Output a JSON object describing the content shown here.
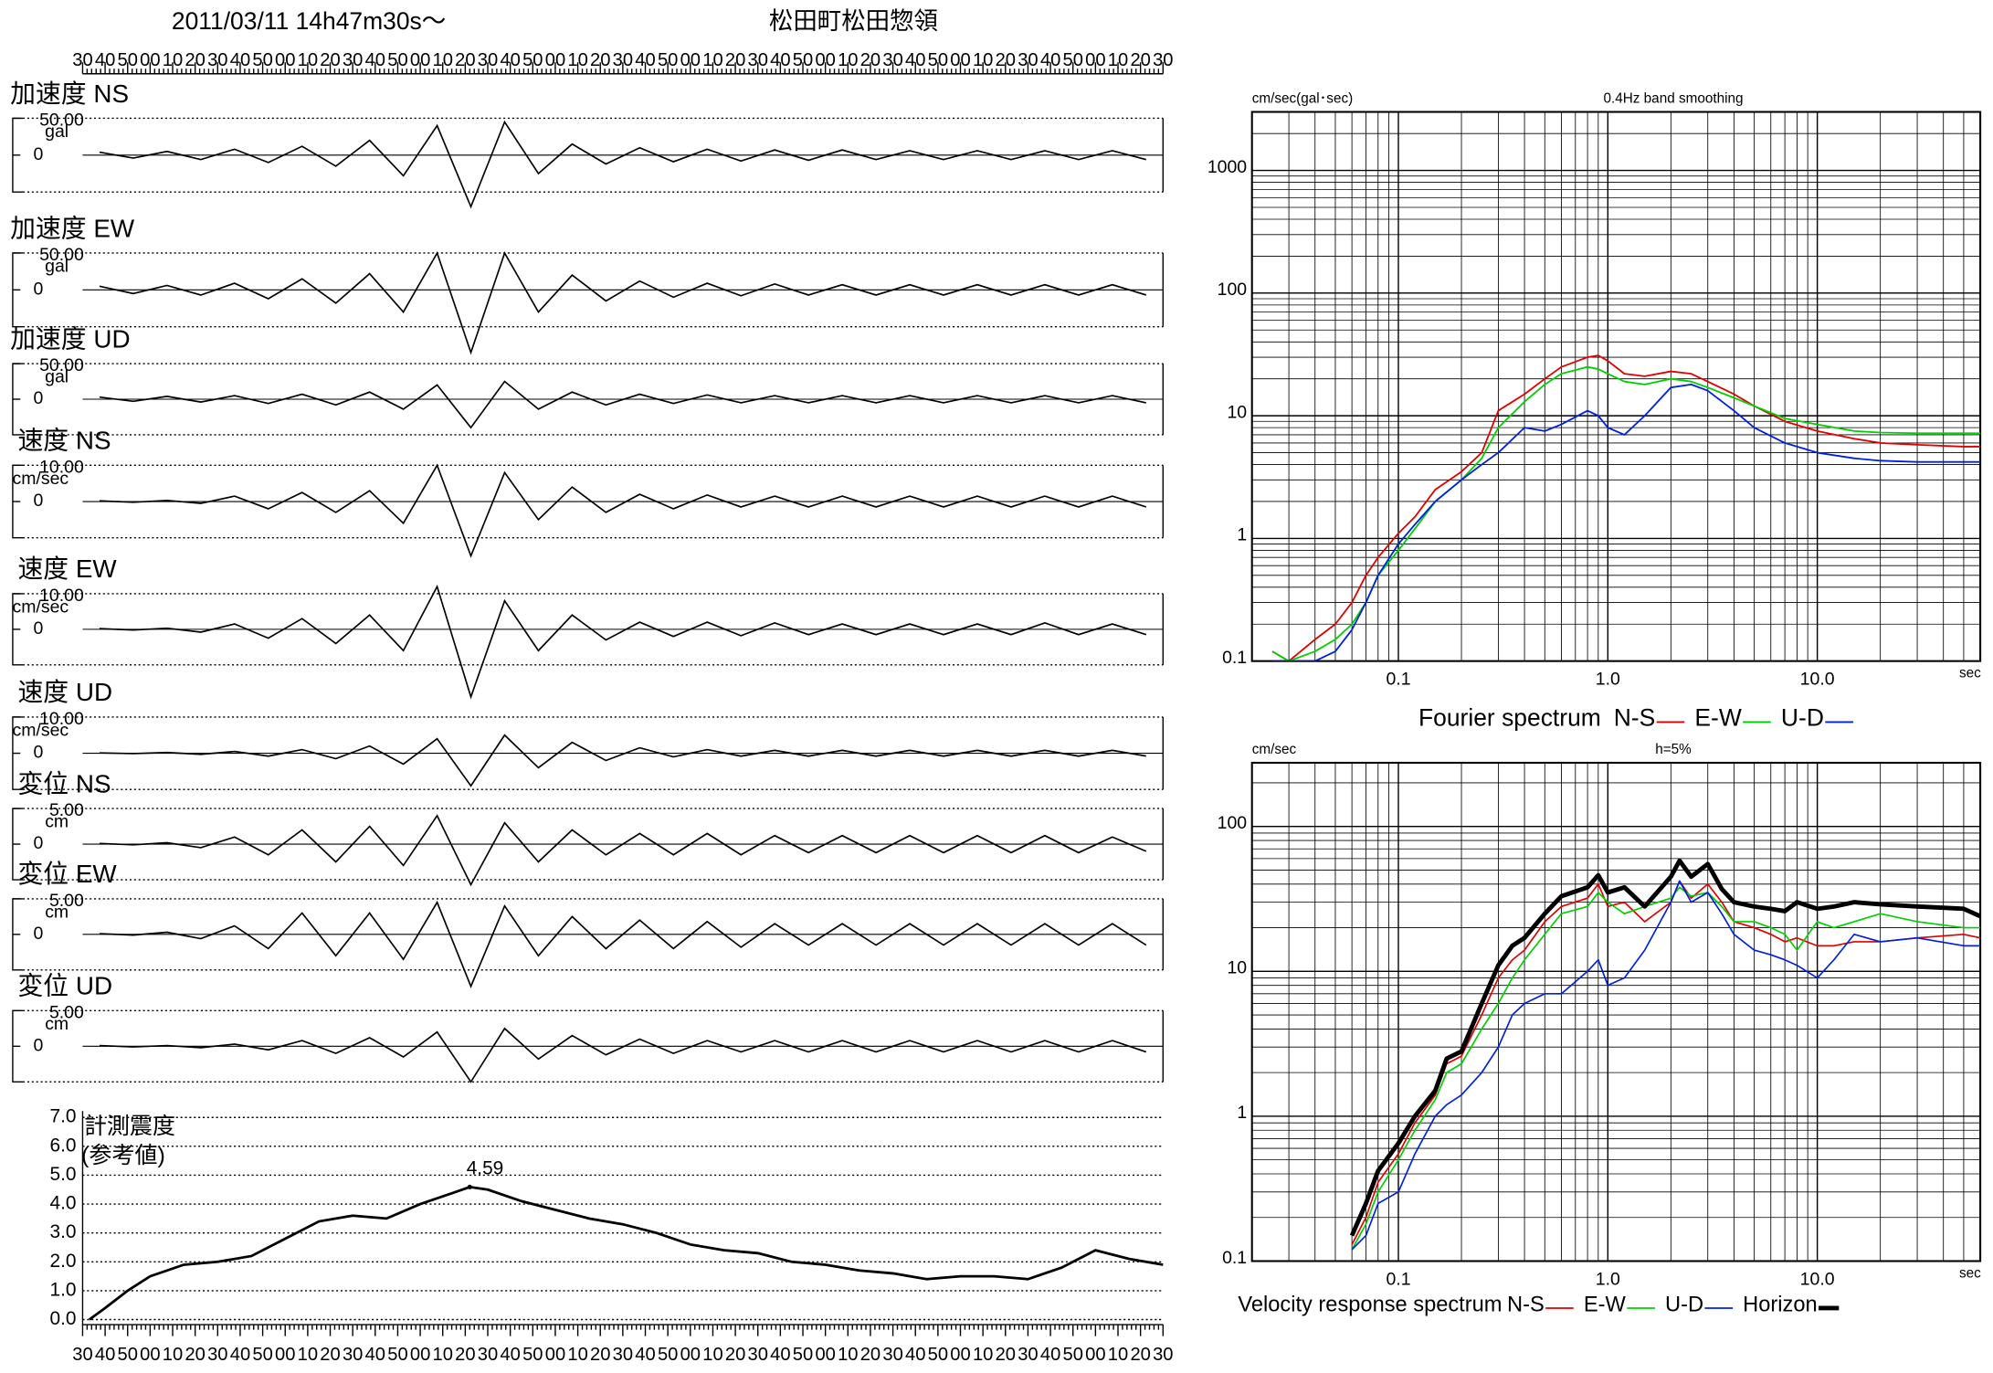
{
  "chart_data": [
    {
      "type": "seismogram",
      "title": "2011/03/11  14h47m30s〜",
      "station": "松田町松田惣領",
      "xlim": [
        0,
        480
      ],
      "xticks": [
        {
          "value": 0,
          "label": "30"
        },
        {
          "value": 10,
          "label": "40"
        },
        {
          "value": 20,
          "label": "50"
        },
        {
          "value": 30,
          "label": "00"
        },
        {
          "value": 40,
          "label": "10"
        },
        {
          "value": 50,
          "label": "20"
        },
        {
          "value": 60,
          "label": "30"
        },
        {
          "value": 70,
          "label": "40"
        },
        {
          "value": 80,
          "label": "50"
        },
        {
          "value": 90,
          "label": "00"
        },
        {
          "value": 100,
          "label": "10"
        },
        {
          "value": 110,
          "label": "20"
        },
        {
          "value": 120,
          "label": "30"
        },
        {
          "value": 130,
          "label": "40"
        },
        {
          "value": 140,
          "label": "50"
        },
        {
          "value": 150,
          "label": "00"
        },
        {
          "value": 160,
          "label": "10"
        },
        {
          "value": 170,
          "label": "20"
        },
        {
          "value": 180,
          "label": "30"
        },
        {
          "value": 190,
          "label": "40"
        },
        {
          "value": 200,
          "label": "50"
        },
        {
          "value": 210,
          "label": "00"
        },
        {
          "value": 220,
          "label": "10"
        },
        {
          "value": 230,
          "label": "20"
        },
        {
          "value": 240,
          "label": "30"
        },
        {
          "value": 250,
          "label": "40"
        },
        {
          "value": 260,
          "label": "50"
        },
        {
          "value": 270,
          "label": "00"
        },
        {
          "value": 280,
          "label": "10"
        },
        {
          "value": 290,
          "label": "20"
        },
        {
          "value": 300,
          "label": "30"
        },
        {
          "value": 310,
          "label": "40"
        },
        {
          "value": 320,
          "label": "50"
        },
        {
          "value": 330,
          "label": "00"
        },
        {
          "value": 340,
          "label": "10"
        },
        {
          "value": 350,
          "label": "20"
        },
        {
          "value": 360,
          "label": "30"
        },
        {
          "value": 370,
          "label": "40"
        },
        {
          "value": 380,
          "label": "50"
        },
        {
          "value": 390,
          "label": "00"
        },
        {
          "value": 400,
          "label": "10"
        },
        {
          "value": 410,
          "label": "20"
        },
        {
          "value": 420,
          "label": "30"
        },
        {
          "value": 430,
          "label": "40"
        },
        {
          "value": 440,
          "label": "50"
        },
        {
          "value": 450,
          "label": "00"
        },
        {
          "value": 460,
          "label": "10"
        },
        {
          "value": 470,
          "label": "20"
        },
        {
          "value": 480,
          "label": "30"
        }
      ],
      "panels": [
        {
          "name": "加速度 NS",
          "unit": "gal",
          "ylim": [
            -50,
            50
          ],
          "yticks": [
            {
              "value": 50,
              "label": "50.00"
            },
            0
          ],
          "values": [
            4,
            4,
            5,
            6,
            8,
            10,
            12,
            15,
            20,
            28,
            40,
            70,
            45,
            25,
            15,
            12,
            10,
            9,
            8,
            8,
            7,
            7,
            7,
            6,
            6,
            6,
            6,
            6,
            6,
            6,
            6,
            6
          ]
        },
        {
          "name": "加速度 EW",
          "unit": "gal",
          "ylim": [
            -50,
            50
          ],
          "yticks": [
            {
              "value": 50,
              "label": "50.00"
            },
            0
          ],
          "values": [
            5,
            5,
            6,
            7,
            9,
            12,
            15,
            18,
            22,
            30,
            50,
            85,
            50,
            30,
            20,
            15,
            12,
            10,
            9,
            8,
            8,
            7,
            7,
            7,
            7,
            7,
            7,
            7,
            7,
            7,
            7,
            7
          ]
        },
        {
          "name": "加速度 UD",
          "unit": "gal",
          "ylim": [
            -50,
            50
          ],
          "yticks": [
            {
              "value": 50,
              "label": "50.00"
            },
            0
          ],
          "values": [
            3,
            3,
            4,
            4,
            5,
            6,
            7,
            8,
            10,
            14,
            20,
            40,
            25,
            14,
            10,
            8,
            7,
            6,
            6,
            5,
            5,
            5,
            5,
            5,
            5,
            5,
            5,
            5,
            5,
            5,
            5,
            5
          ]
        },
        {
          "name": "速度 NS",
          "unit": "cm/sec",
          "ylim": [
            -10,
            10
          ],
          "yticks": [
            {
              "value": 10,
              "label": "10.00"
            },
            0
          ],
          "values": [
            0.2,
            0.2,
            0.3,
            0.5,
            1.5,
            2,
            2.5,
            3,
            3,
            6,
            10,
            15,
            8,
            5,
            4,
            3,
            2,
            2,
            1.8,
            1.5,
            1.5,
            1.5,
            1.5,
            1.5,
            1.5,
            1.5,
            1.5,
            1.5,
            1.5,
            1.5,
            1.5,
            1.5
          ]
        },
        {
          "name": "速度 EW",
          "unit": "cm/sec",
          "ylim": [
            -10,
            10
          ],
          "yticks": [
            {
              "value": 10,
              "label": "10.00"
            },
            0
          ],
          "values": [
            0.2,
            0.2,
            0.3,
            0.8,
            1.5,
            2.5,
            3,
            4,
            4,
            6,
            12,
            19,
            8,
            6,
            4,
            3,
            2,
            2,
            2,
            1.8,
            1.8,
            1.5,
            1.5,
            1.5,
            1.5,
            1.5,
            1.5,
            1.5,
            1.8,
            1.5,
            1.5,
            1.5
          ]
        },
        {
          "name": "速度 UD",
          "unit": "cm/sec",
          "ylim": [
            -10,
            10
          ],
          "yticks": [
            {
              "value": 10,
              "label": "10.00"
            },
            0
          ],
          "values": [
            0.1,
            0.1,
            0.2,
            0.3,
            0.5,
            0.8,
            1,
            1.5,
            2,
            3,
            4,
            9,
            5,
            4,
            3,
            2,
            1.5,
            1,
            1,
            0.8,
            0.8,
            0.8,
            0.8,
            0.8,
            0.8,
            0.8,
            0.8,
            0.8,
            0.8,
            0.8,
            0.8,
            0.8
          ]
        },
        {
          "name": "変位 NS",
          "unit": "cm",
          "ylim": [
            -5,
            5
          ],
          "yticks": [
            {
              "value": 5,
              "label": "5.00"
            },
            0
          ],
          "values": [
            0.1,
            0.1,
            0.2,
            0.5,
            1,
            1.5,
            2,
            2.5,
            2.5,
            3,
            4,
            5.7,
            3,
            2.5,
            2,
            1.5,
            1.5,
            1.5,
            1.5,
            1.5,
            1.2,
            1.2,
            1.2,
            1.2,
            1.2,
            1.2,
            1.2,
            1.2,
            1.2,
            1.2,
            1,
            1
          ]
        },
        {
          "name": "変位 EW",
          "unit": "cm",
          "ylim": [
            -5,
            5
          ],
          "yticks": [
            {
              "value": 5,
              "label": "5.00"
            },
            0
          ],
          "values": [
            0.1,
            0.1,
            0.3,
            0.6,
            1.2,
            2,
            3,
            3,
            3,
            3.5,
            4.5,
            7.3,
            4,
            3,
            2.5,
            2,
            2,
            2,
            1.8,
            1.8,
            1.5,
            1.5,
            1.5,
            1.5,
            1.5,
            1.5,
            1.5,
            1.5,
            1.5,
            1.5,
            1.5,
            1.5
          ]
        },
        {
          "name": "変位 UD",
          "unit": "cm",
          "ylim": [
            -5,
            5
          ],
          "yticks": [
            {
              "value": 5,
              "label": "5.00"
            },
            0
          ],
          "values": [
            0.1,
            0.1,
            0.1,
            0.2,
            0.3,
            0.5,
            0.8,
            1,
            1.2,
            1.5,
            2,
            5,
            2.5,
            1.8,
            1.5,
            1.2,
            1,
            1,
            0.8,
            0.8,
            0.8,
            0.8,
            0.8,
            0.8,
            0.8,
            0.8,
            0.8,
            0.8,
            0.8,
            0.8,
            0.8,
            0.8
          ]
        }
      ],
      "intensity": {
        "title": "計測震度",
        "subtitle": "(参考値)",
        "ylim": [
          0,
          7
        ],
        "yticks": [
          {
            "value": 0,
            "label": "0.0"
          },
          {
            "value": 1,
            "label": "1.0"
          },
          {
            "value": 2,
            "label": "2.0"
          },
          {
            "value": 3,
            "label": "3.0"
          },
          {
            "value": 4,
            "label": "4.0"
          },
          {
            "value": 5,
            "label": "5.0"
          },
          {
            "value": 6,
            "label": "6.0"
          },
          {
            "value": 7,
            "label": "7.0"
          }
        ],
        "x": [
          3,
          10,
          20,
          30,
          45,
          60,
          75,
          90,
          105,
          120,
          135,
          150,
          165,
          172,
          180,
          195,
          210,
          225,
          240,
          255,
          270,
          285,
          300,
          315,
          330,
          345,
          360,
          375,
          390,
          405,
          420,
          435,
          450,
          465,
          480
        ],
        "values": [
          0,
          0.4,
          1.0,
          1.5,
          1.9,
          2.0,
          2.2,
          2.8,
          3.4,
          3.6,
          3.5,
          4.0,
          4.4,
          4.59,
          4.5,
          4.1,
          3.8,
          3.5,
          3.3,
          3.0,
          2.6,
          2.4,
          2.3,
          2.0,
          1.9,
          1.7,
          1.6,
          1.4,
          1.5,
          1.5,
          1.4,
          1.8,
          2.4,
          2.1,
          1.9
        ],
        "peak": {
          "x": 172,
          "value": 4.59
        }
      }
    },
    {
      "type": "loglog",
      "ylabel": "cm/sec(gal･sec)",
      "title": "0.4Hz band smoothing",
      "xlabel": "sec",
      "legend_title": "Fourier spectrum",
      "xscale": "log",
      "yscale": "log",
      "grid": true,
      "xlim": [
        0.02,
        60
      ],
      "ylim": [
        0.1,
        3000
      ],
      "xticks": [
        0.1,
        {
          "value": 1,
          "label": "1.0"
        },
        {
          "value": 10,
          "label": "10.0"
        }
      ],
      "yticks": [
        0.1,
        1,
        10,
        100,
        1000
      ],
      "x": [
        0.025,
        0.03,
        0.04,
        0.05,
        0.06,
        0.07,
        0.08,
        0.1,
        0.12,
        0.15,
        0.2,
        0.25,
        0.3,
        0.4,
        0.5,
        0.6,
        0.8,
        0.9,
        1.0,
        1.2,
        1.5,
        2,
        2.5,
        3,
        4,
        5,
        7,
        10,
        15,
        20,
        30,
        50,
        60
      ],
      "series": [
        {
          "name": "N-S",
          "color": "#e00000",
          "width": 1.3,
          "values": [
            0.12,
            0.1,
            0.15,
            0.2,
            0.3,
            0.5,
            0.7,
            1.1,
            1.5,
            2.5,
            3.5,
            5,
            11,
            15,
            20,
            25,
            30,
            31,
            28,
            22,
            21,
            23,
            22,
            19,
            15,
            12,
            9,
            7.5,
            6.5,
            6,
            5.8,
            5.6,
            5.6
          ]
        },
        {
          "name": "E-W",
          "color": "#00d000",
          "width": 1.3,
          "values": [
            0.12,
            0.1,
            0.12,
            0.15,
            0.2,
            0.3,
            0.5,
            0.8,
            1.2,
            2,
            3,
            4.5,
            8,
            13,
            18,
            22,
            25,
            24,
            22,
            19,
            18,
            20,
            19,
            17,
            14,
            12,
            9.5,
            8.5,
            7.5,
            7.3,
            7.2,
            7.2,
            7.2
          ]
        },
        {
          "name": "U-D",
          "color": "#0020e0",
          "width": 1.3,
          "values": [
            0.1,
            0.1,
            0.1,
            0.12,
            0.18,
            0.3,
            0.5,
            0.9,
            1.3,
            2,
            3,
            4,
            5,
            8,
            7.5,
            8.5,
            11,
            10,
            8,
            7,
            10,
            17,
            18,
            16,
            11,
            8,
            6,
            5,
            4.5,
            4.3,
            4.2,
            4.2,
            4.2
          ]
        }
      ]
    },
    {
      "type": "loglog",
      "ylabel": "cm/sec",
      "title": "h=5%",
      "xlabel": "sec",
      "legend_title": "Velocity response spectrum",
      "xscale": "log",
      "yscale": "log",
      "grid": true,
      "xlim": [
        0.02,
        60
      ],
      "ylim": [
        0.1,
        275
      ],
      "xticks": [
        0.1,
        {
          "value": 1,
          "label": "1.0"
        },
        {
          "value": 10,
          "label": "10.0"
        }
      ],
      "yticks": [
        0.1,
        1,
        10,
        100
      ],
      "x": [
        0.06,
        0.07,
        0.08,
        0.1,
        0.12,
        0.15,
        0.17,
        0.2,
        0.25,
        0.3,
        0.35,
        0.4,
        0.5,
        0.6,
        0.8,
        0.9,
        1.0,
        1.2,
        1.5,
        2,
        2.2,
        2.5,
        3,
        3.5,
        4,
        5,
        6,
        7,
        8,
        10,
        12,
        15,
        20,
        30,
        50,
        60
      ],
      "series": [
        {
          "name": "N-S",
          "color": "#e00000",
          "width": 1.2,
          "values": [
            0.13,
            0.2,
            0.35,
            0.55,
            0.9,
            1.4,
            2.3,
            2.6,
            5,
            9,
            12,
            14,
            22,
            28,
            32,
            40,
            28,
            30,
            22,
            30,
            42,
            32,
            40,
            30,
            22,
            20,
            18,
            16,
            17,
            15,
            15,
            16,
            16,
            17,
            18,
            17
          ]
        },
        {
          "name": "E-W",
          "color": "#00d000",
          "width": 1.2,
          "values": [
            0.12,
            0.18,
            0.3,
            0.5,
            0.8,
            1.3,
            2,
            2.3,
            4,
            6,
            9,
            12,
            18,
            25,
            28,
            35,
            30,
            25,
            28,
            32,
            38,
            33,
            35,
            28,
            22,
            22,
            20,
            18,
            14,
            22,
            20,
            22,
            25,
            22,
            20,
            20
          ]
        },
        {
          "name": "U-D",
          "color": "#0020e0",
          "width": 1.2,
          "values": [
            0.12,
            0.15,
            0.25,
            0.3,
            0.55,
            1.0,
            1.2,
            1.4,
            2,
            3,
            5,
            6,
            7,
            7,
            10,
            12,
            8,
            9,
            14,
            30,
            42,
            30,
            35,
            25,
            18,
            14,
            13,
            12,
            11,
            9,
            12,
            18,
            16,
            17,
            15,
            15
          ]
        },
        {
          "name": "Horizon",
          "color": "#000000",
          "width": 3.5,
          "values": [
            0.15,
            0.25,
            0.42,
            0.65,
            1.0,
            1.5,
            2.5,
            2.8,
            6,
            11,
            15,
            17,
            25,
            33,
            38,
            46,
            35,
            38,
            28,
            45,
            58,
            45,
            55,
            37,
            30,
            28,
            27,
            26,
            30,
            27,
            28,
            30,
            29,
            28,
            27,
            24
          ]
        }
      ]
    }
  ]
}
